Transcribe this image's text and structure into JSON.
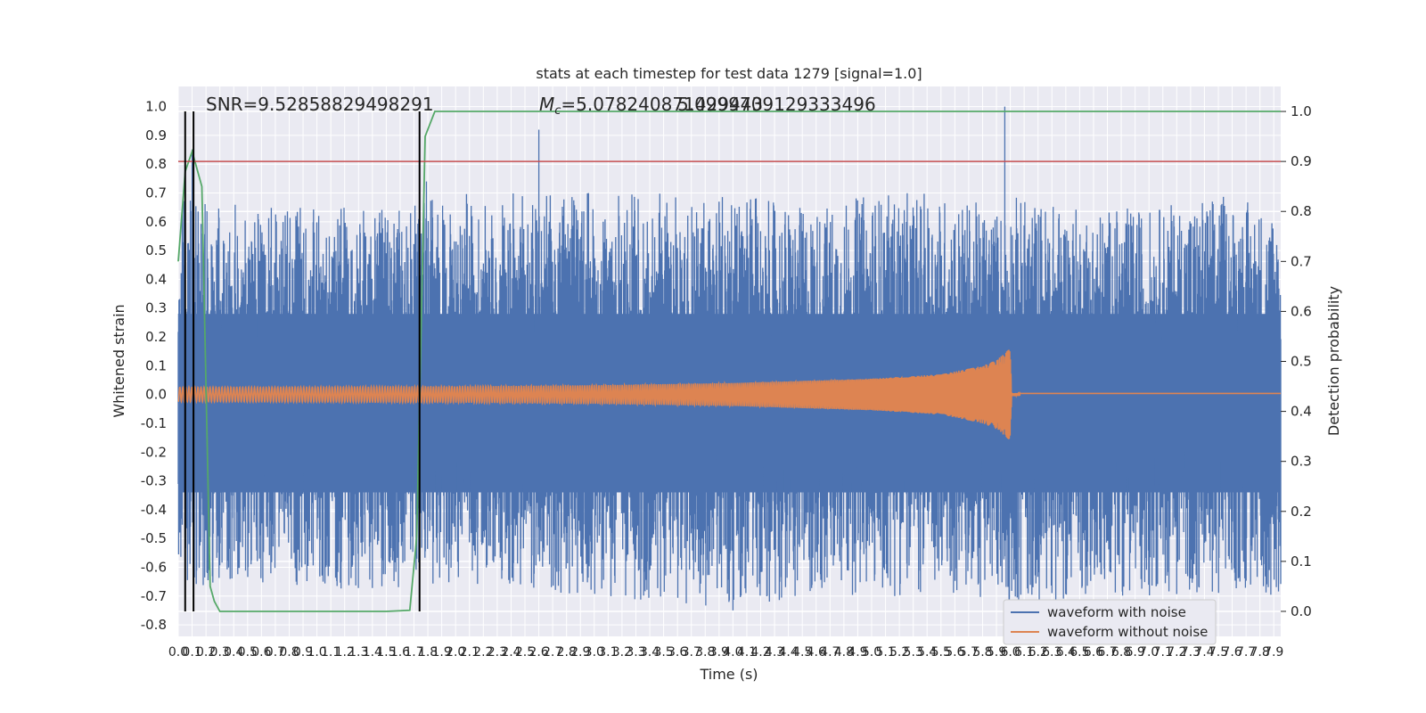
{
  "chart_data": {
    "type": "line",
    "title": "stats at each timestep for test data 1279 [signal=1.0]",
    "xlabel": "Time (s)",
    "ylabel": "Whitened strain",
    "ylabel_right": "Detection probability",
    "xlim": [
      0.0,
      7.95
    ],
    "ylim": [
      -0.84,
      1.07
    ],
    "ylim_right": [
      -0.05,
      1.05
    ],
    "x_ticks": [
      "0.0",
      "0.1",
      "0.2",
      "0.3",
      "0.4",
      "0.5",
      "0.6",
      "0.7",
      "0.8",
      "0.9",
      "1.0",
      "1.1",
      "1.2",
      "1.3",
      "1.4",
      "1.5",
      "1.6",
      "1.7",
      "1.8",
      "1.9",
      "2.0",
      "2.1",
      "2.2",
      "2.3",
      "2.4",
      "2.5",
      "2.6",
      "2.7",
      "2.8",
      "2.9",
      "3.0",
      "3.1",
      "3.2",
      "3.3",
      "3.4",
      "3.5",
      "3.6",
      "3.7",
      "3.8",
      "3.9",
      "4.0",
      "4.1",
      "4.2",
      "4.3",
      "4.4",
      "4.5",
      "4.6",
      "4.7",
      "4.8",
      "4.9",
      "5.0",
      "5.1",
      "5.2",
      "5.3",
      "5.4",
      "5.5",
      "5.6",
      "5.7",
      "5.8",
      "5.9",
      "6.0",
      "6.1",
      "6.2",
      "6.3",
      "6.4",
      "6.5",
      "6.6",
      "6.7",
      "6.8",
      "6.9",
      "7.0",
      "7.1",
      "7.2",
      "7.3",
      "7.4",
      "7.5",
      "7.6",
      "7.7",
      "7.8",
      "7.9"
    ],
    "y_ticks": [
      "-0.8",
      "-0.7",
      "-0.6",
      "-0.5",
      "-0.4",
      "-0.3",
      "-0.2",
      "-0.1",
      "0.0",
      "0.1",
      "0.2",
      "0.3",
      "0.4",
      "0.5",
      "0.6",
      "0.7",
      "0.8",
      "0.9",
      "1.0"
    ],
    "y_ticks_right": [
      "0.0",
      "0.1",
      "0.2",
      "0.3",
      "0.4",
      "0.5",
      "0.6",
      "0.7",
      "0.8",
      "0.9",
      "1.0"
    ],
    "grid": true,
    "legend_position": "bottom-right",
    "annotations": {
      "snr": "SNR=9.52858829498291",
      "mc_prefix": "M",
      "mc_sub": "c",
      "mc_value": "=5.078240871429443",
      "overlap_text": "5.0999709129333496"
    },
    "series": [
      {
        "name": "waveform with noise",
        "color": "#4c72b0",
        "style": "noise band",
        "envelope_x": [
          0.0,
          0.5,
          1.0,
          1.5,
          2.0,
          2.5,
          3.0,
          3.5,
          4.0,
          4.5,
          5.0,
          5.5,
          5.9,
          6.0,
          6.5,
          7.0,
          7.5,
          7.95
        ],
        "envelope_top": [
          0.6,
          0.55,
          0.55,
          0.55,
          0.6,
          0.6,
          0.6,
          0.6,
          0.6,
          0.55,
          0.6,
          0.6,
          0.55,
          0.6,
          0.55,
          0.55,
          0.6,
          0.55
        ],
        "envelope_bottom": [
          -0.6,
          -0.55,
          -0.58,
          -0.58,
          -0.55,
          -0.58,
          -0.6,
          -0.62,
          -0.65,
          -0.6,
          -0.6,
          -0.6,
          -0.62,
          -0.65,
          -0.6,
          -0.6,
          -0.6,
          -0.6
        ],
        "spikes": [
          {
            "x": 0.1,
            "y": 0.85
          },
          {
            "x": 1.79,
            "y": 0.74
          },
          {
            "x": 2.6,
            "y": 0.92
          },
          {
            "x": 3.9,
            "y": 0.67
          },
          {
            "x": 5.96,
            "y": 1.0
          },
          {
            "x": 6.3,
            "y": -0.69
          },
          {
            "x": 4.0,
            "y": -0.75
          },
          {
            "x": 0.85,
            "y": -0.65
          }
        ]
      },
      {
        "name": "waveform without noise",
        "color": "#dd8452",
        "style": "chirp",
        "amplitude_x": [
          0.0,
          1.0,
          2.0,
          3.0,
          4.0,
          5.0,
          5.5,
          5.8,
          5.9,
          6.0,
          6.01,
          7.95
        ],
        "amplitude": [
          0.025,
          0.026,
          0.028,
          0.032,
          0.04,
          0.055,
          0.07,
          0.1,
          0.12,
          0.16,
          0.005,
          0.005
        ]
      },
      {
        "name": "Detection probability",
        "color": "#55a868",
        "axis": "right",
        "x": [
          0.0,
          0.05,
          0.1,
          0.17,
          0.23,
          0.26,
          0.3,
          1.5,
          1.67,
          1.72,
          1.78,
          1.85,
          7.95
        ],
        "y": [
          0.7,
          0.88,
          0.92,
          0.85,
          0.05,
          0.02,
          0.0,
          0.0,
          0.002,
          0.15,
          0.95,
          1.0,
          1.0
        ]
      }
    ],
    "threshold": {
      "axis": "right",
      "y": 0.9,
      "color": "#c44e52"
    },
    "vertical_markers": {
      "x": [
        0.05,
        0.11,
        1.74
      ],
      "color": "#000000"
    }
  }
}
